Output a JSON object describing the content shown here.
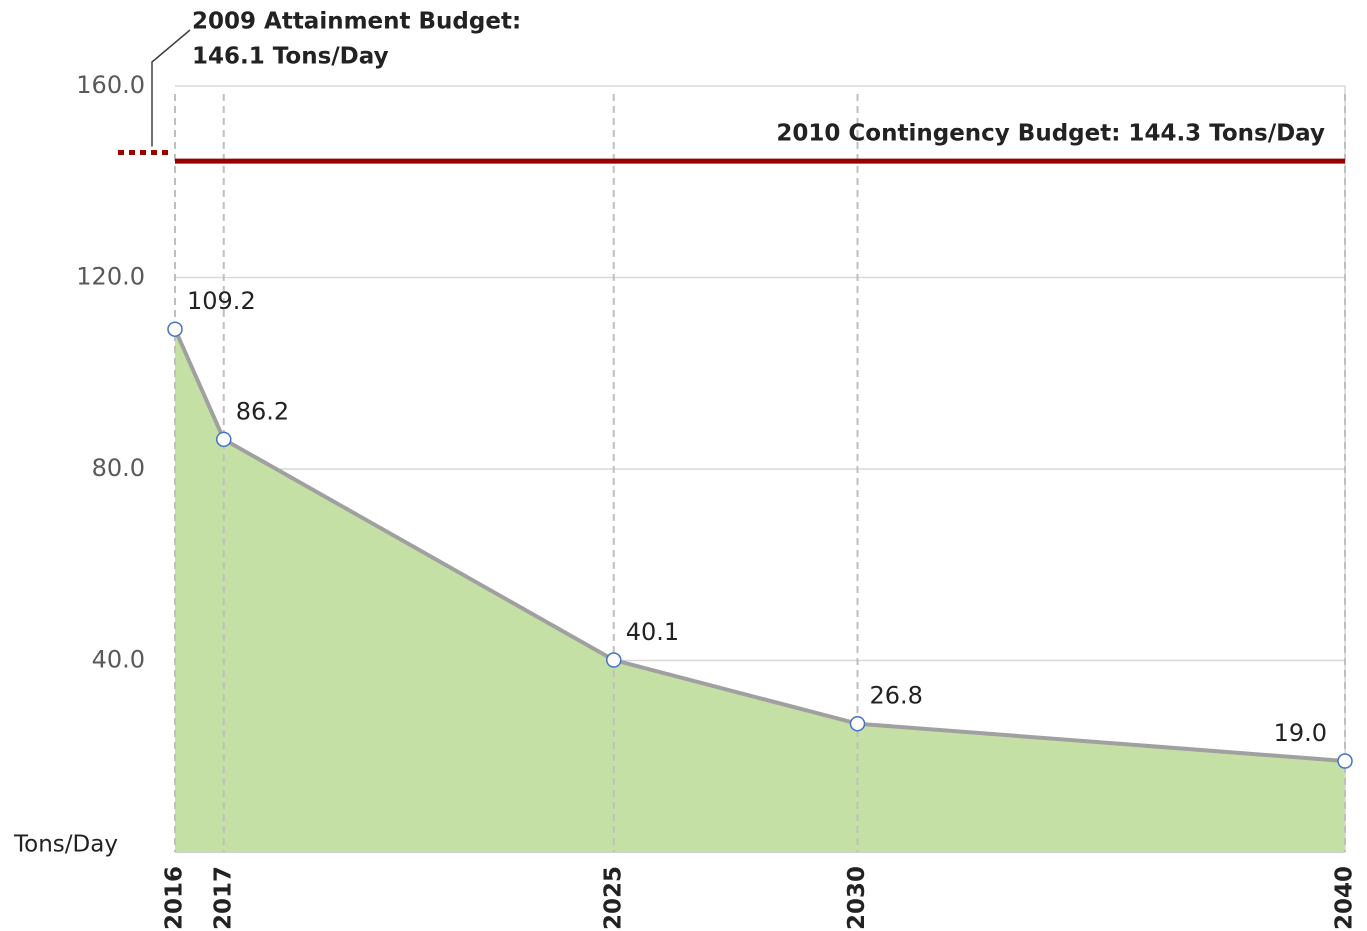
{
  "chart_data": {
    "type": "area",
    "y_label": "Tons/Day",
    "x": [
      2016,
      2017,
      2025,
      2030,
      2040
    ],
    "series": [
      {
        "color": "#c5e0a5",
        "line_color": "#a0a0a0",
        "marker_color": "#4472c4",
        "values": [
          109.2,
          86.2,
          40.1,
          26.8,
          19.0
        ],
        "value_labels": [
          "109.2",
          "86.2",
          "40.1",
          "26.8",
          "19.0"
        ]
      }
    ],
    "xlim": [
      2016,
      2040
    ],
    "xticks": [
      2016,
      2017,
      2025,
      2030,
      2040
    ],
    "ylim": [
      0,
      160
    ],
    "yticks": [
      {
        "value": 40,
        "label": "40.0"
      },
      {
        "value": 80,
        "label": "80.0"
      },
      {
        "value": 120,
        "label": "120.0"
      },
      {
        "value": 160,
        "label": "160.0"
      }
    ],
    "grid": true,
    "reference_lines": [
      {
        "value": 144.3,
        "color": "#990000",
        "style": "solid",
        "label": [
          "2010 Contingency Budget: 144.3 Tons/Day"
        ]
      },
      {
        "value": 146.1,
        "color": "#990000",
        "style": "dotted",
        "label": [
          "2009 Attainment Budget:",
          "146.1 Tons/Day"
        ]
      }
    ]
  }
}
